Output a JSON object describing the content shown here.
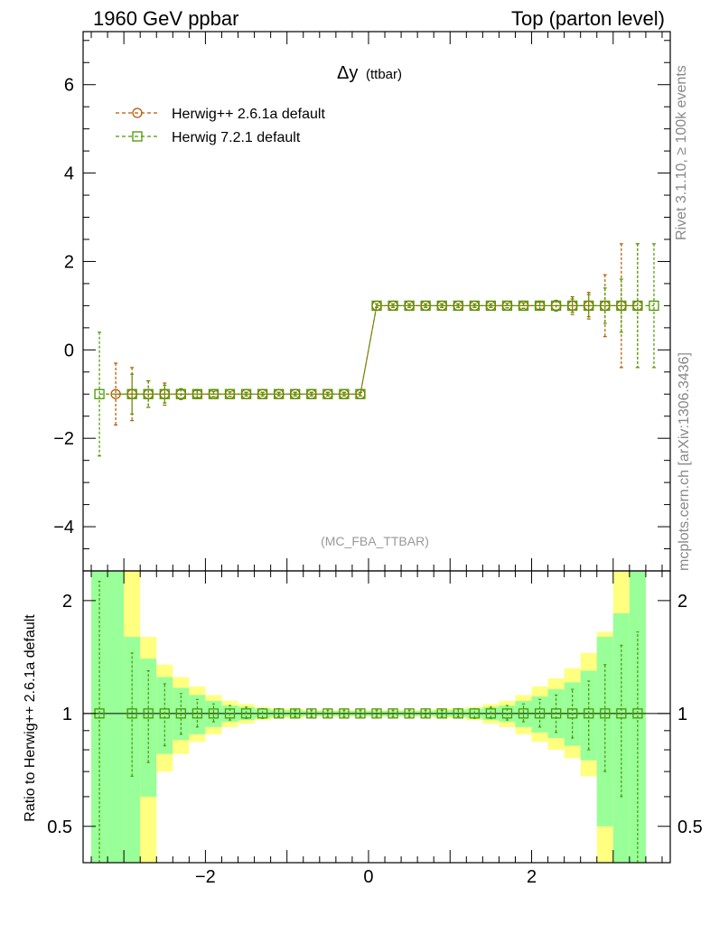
{
  "header": {
    "left": "1960 GeV ppbar",
    "right": "Top (parton level)"
  },
  "side_labels": {
    "rivet": "Rivet 3.1.10, ≥ 100k events",
    "mcplots": "mcplots.cern.ch [arXiv:1306.3436]"
  },
  "chart_data": [
    {
      "type": "line",
      "panel": "main",
      "title_main": "Δy",
      "title_sub": "(ttbar)",
      "watermark": "(MC_FBA_TTBAR)",
      "xlim": [
        -3.5,
        3.7
      ],
      "ylim": [
        -5.0,
        7.2
      ],
      "yticks": [
        -4,
        -2,
        0,
        2,
        4,
        6
      ],
      "ytick_labels": [
        "−4",
        "−2",
        "0",
        "2",
        "4",
        "6"
      ],
      "legend_position": "top-left",
      "x": [
        -3.3,
        -3.1,
        -2.9,
        -2.7,
        -2.5,
        -2.3,
        -2.1,
        -1.9,
        -1.7,
        -1.5,
        -1.3,
        -1.1,
        -0.9,
        -0.7,
        -0.5,
        -0.3,
        -0.1,
        0.1,
        0.3,
        0.5,
        0.7,
        0.9,
        1.1,
        1.3,
        1.5,
        1.7,
        1.9,
        2.1,
        2.3,
        2.5,
        2.7,
        2.9,
        3.1,
        3.3,
        3.5
      ],
      "series": [
        {
          "name": "Herwig++ 2.6.1a default",
          "color": "#b35900",
          "marker": "circle",
          "x": [
            -3.1,
            -2.9,
            -2.7,
            -2.5,
            -2.3,
            -2.1,
            -1.9,
            -1.7,
            -1.5,
            -1.3,
            -1.1,
            -0.9,
            -0.7,
            -0.5,
            -0.3,
            -0.1,
            0.1,
            0.3,
            0.5,
            0.7,
            0.9,
            1.1,
            1.3,
            1.5,
            1.7,
            1.9,
            2.1,
            2.3,
            2.5,
            2.7,
            2.9,
            3.1,
            3.3
          ],
          "y": [
            -1,
            -1,
            -1,
            -1,
            -1,
            -1,
            -1,
            -1,
            -1,
            -1,
            -1,
            -1,
            -1,
            -1,
            -1,
            -1,
            1,
            1,
            1,
            1,
            1,
            1,
            1,
            1,
            1,
            1,
            1,
            1,
            1,
            1,
            1,
            1,
            1
          ],
          "err": [
            0.7,
            0.6,
            0.3,
            0.25,
            0.12,
            0.08,
            0.06,
            0.05,
            0.04,
            0.04,
            0.04,
            0.04,
            0.04,
            0.04,
            0.04,
            0.04,
            0.04,
            0.04,
            0.04,
            0.04,
            0.04,
            0.04,
            0.04,
            0.04,
            0.05,
            0.06,
            0.08,
            0.12,
            0.2,
            0.3,
            0.7,
            1.4,
            1.4
          ]
        },
        {
          "name": "Herwig 7.2.1 default",
          "color": "#4c9900",
          "marker": "square",
          "x": [
            -3.3,
            -2.9,
            -2.7,
            -2.5,
            -2.3,
            -2.1,
            -1.9,
            -1.7,
            -1.5,
            -1.3,
            -1.1,
            -0.9,
            -0.7,
            -0.5,
            -0.3,
            -0.1,
            0.1,
            0.3,
            0.5,
            0.7,
            0.9,
            1.1,
            1.3,
            1.5,
            1.7,
            1.9,
            2.1,
            2.3,
            2.5,
            2.7,
            2.9,
            3.1,
            3.3,
            3.5
          ],
          "y": [
            -1,
            -1,
            -1,
            -1,
            -1,
            -1,
            -1,
            -1,
            -1,
            -1,
            -1,
            -1,
            -1,
            -1,
            -1,
            -1,
            1,
            1,
            1,
            1,
            1,
            1,
            1,
            1,
            1,
            1,
            1,
            1,
            1,
            1,
            1,
            1,
            1,
            1
          ],
          "err": [
            1.4,
            0.45,
            0.3,
            0.2,
            0.12,
            0.08,
            0.06,
            0.05,
            0.04,
            0.04,
            0.04,
            0.04,
            0.04,
            0.04,
            0.04,
            0.04,
            0.04,
            0.04,
            0.04,
            0.04,
            0.04,
            0.04,
            0.04,
            0.04,
            0.05,
            0.06,
            0.08,
            0.12,
            0.15,
            0.25,
            0.4,
            0.6,
            1.4,
            1.4
          ]
        }
      ]
    },
    {
      "type": "line",
      "panel": "ratio",
      "ylabel": "Ratio to Herwig++ 2.6.1a default",
      "xlim": [
        -3.5,
        3.7
      ],
      "ylim": [
        0.4,
        2.4
      ],
      "log_y": true,
      "xticks": [
        -2,
        0,
        2
      ],
      "xtick_labels": [
        "−2",
        "0",
        "2"
      ],
      "yticks": [
        0.5,
        1,
        2
      ],
      "ytick_labels": [
        "0.5",
        "1",
        "2"
      ],
      "bins": [
        [
          -3.4,
          -3.2
        ],
        [
          -3.2,
          -3.0
        ],
        [
          -3.0,
          -2.8
        ],
        [
          -2.8,
          -2.6
        ],
        [
          -2.6,
          -2.4
        ],
        [
          -2.4,
          -2.2
        ],
        [
          -2.2,
          -2.0
        ],
        [
          -2.0,
          -1.8
        ],
        [
          -1.8,
          -1.6
        ],
        [
          -1.6,
          -1.4
        ],
        [
          -1.4,
          -1.2
        ],
        [
          -1.2,
          -1.0
        ],
        [
          -1.0,
          -0.8
        ],
        [
          -0.8,
          -0.6
        ],
        [
          -0.6,
          -0.4
        ],
        [
          -0.4,
          -0.2
        ],
        [
          -0.2,
          0.0
        ],
        [
          0.0,
          0.2
        ],
        [
          0.2,
          0.4
        ],
        [
          0.4,
          0.6
        ],
        [
          0.6,
          0.8
        ],
        [
          0.8,
          1.0
        ],
        [
          1.0,
          1.2
        ],
        [
          1.2,
          1.4
        ],
        [
          1.4,
          1.6
        ],
        [
          1.6,
          1.8
        ],
        [
          1.8,
          2.0
        ],
        [
          2.0,
          2.2
        ],
        [
          2.2,
          2.4
        ],
        [
          2.4,
          2.6
        ],
        [
          2.6,
          2.8
        ],
        [
          2.8,
          3.0
        ],
        [
          3.0,
          3.2
        ],
        [
          3.2,
          3.4
        ]
      ],
      "band_green": [
        [
          0.3,
          2.4
        ],
        [
          0.3,
          2.4
        ],
        [
          0.3,
          1.6
        ],
        [
          0.6,
          1.4
        ],
        [
          0.78,
          1.25
        ],
        [
          0.85,
          1.17
        ],
        [
          0.88,
          1.12
        ],
        [
          0.92,
          1.08
        ],
        [
          0.95,
          1.05
        ],
        [
          0.96,
          1.04
        ],
        [
          0.97,
          1.03
        ],
        [
          0.98,
          1.02
        ],
        [
          0.98,
          1.02
        ],
        [
          0.985,
          1.015
        ],
        [
          0.985,
          1.015
        ],
        [
          0.985,
          1.015
        ],
        [
          0.985,
          1.015
        ],
        [
          0.985,
          1.015
        ],
        [
          0.985,
          1.015
        ],
        [
          0.985,
          1.015
        ],
        [
          0.985,
          1.015
        ],
        [
          0.98,
          1.02
        ],
        [
          0.98,
          1.02
        ],
        [
          0.97,
          1.03
        ],
        [
          0.96,
          1.04
        ],
        [
          0.95,
          1.05
        ],
        [
          0.92,
          1.08
        ],
        [
          0.89,
          1.11
        ],
        [
          0.86,
          1.16
        ],
        [
          0.82,
          1.21
        ],
        [
          0.75,
          1.3
        ],
        [
          0.5,
          1.6
        ],
        [
          0.3,
          1.85
        ],
        [
          0.3,
          2.4
        ]
      ],
      "band_yellow": [
        [
          0.3,
          2.4
        ],
        [
          0.3,
          2.4
        ],
        [
          0.3,
          2.4
        ],
        [
          0.3,
          1.6
        ],
        [
          0.7,
          1.35
        ],
        [
          0.78,
          1.25
        ],
        [
          0.84,
          1.18
        ],
        [
          0.88,
          1.12
        ],
        [
          0.92,
          1.08
        ],
        [
          0.94,
          1.06
        ],
        [
          0.96,
          1.04
        ],
        [
          0.97,
          1.03
        ],
        [
          0.97,
          1.03
        ],
        [
          0.98,
          1.02
        ],
        [
          0.98,
          1.02
        ],
        [
          0.98,
          1.02
        ],
        [
          0.98,
          1.02
        ],
        [
          0.98,
          1.02
        ],
        [
          0.98,
          1.02
        ],
        [
          0.98,
          1.02
        ],
        [
          0.98,
          1.02
        ],
        [
          0.97,
          1.03
        ],
        [
          0.97,
          1.03
        ],
        [
          0.96,
          1.04
        ],
        [
          0.94,
          1.06
        ],
        [
          0.92,
          1.08
        ],
        [
          0.88,
          1.12
        ],
        [
          0.84,
          1.18
        ],
        [
          0.8,
          1.24
        ],
        [
          0.76,
          1.32
        ],
        [
          0.68,
          1.45
        ],
        [
          0.3,
          1.65
        ],
        [
          0.3,
          2.4
        ],
        [
          0.3,
          2.4
        ]
      ],
      "series": [
        {
          "name": "Herwig 7.2.1 default",
          "color": "#4c9900",
          "marker": "square",
          "x": [
            -3.3,
            -2.9,
            -2.7,
            -2.5,
            -2.3,
            -2.1,
            -1.9,
            -1.7,
            -1.5,
            -1.3,
            -1.1,
            -0.9,
            -0.7,
            -0.5,
            -0.3,
            -0.1,
            0.1,
            0.3,
            0.5,
            0.7,
            0.9,
            1.1,
            1.3,
            1.5,
            1.7,
            1.9,
            2.1,
            2.3,
            2.5,
            2.7,
            2.9,
            3.1,
            3.3
          ],
          "y": [
            1,
            1,
            1,
            1,
            1,
            1,
            1,
            1,
            1,
            1,
            1,
            1,
            1,
            1,
            1,
            1,
            1,
            1,
            1,
            1,
            1,
            1,
            1,
            1,
            1,
            1,
            1,
            1,
            1,
            1,
            1,
            1,
            1
          ],
          "lo": [
            0.3,
            0.68,
            0.74,
            0.82,
            0.88,
            0.92,
            0.95,
            0.96,
            0.97,
            0.97,
            0.98,
            0.98,
            0.98,
            0.98,
            0.98,
            0.98,
            0.98,
            0.98,
            0.98,
            0.98,
            0.98,
            0.98,
            0.97,
            0.97,
            0.96,
            0.95,
            0.92,
            0.89,
            0.86,
            0.8,
            0.7,
            0.6,
            0.38
          ],
          "hi": [
            2.25,
            1.45,
            1.3,
            1.2,
            1.13,
            1.09,
            1.06,
            1.05,
            1.04,
            1.03,
            1.03,
            1.02,
            1.02,
            1.02,
            1.02,
            1.02,
            1.02,
            1.02,
            1.02,
            1.02,
            1.02,
            1.03,
            1.03,
            1.04,
            1.05,
            1.06,
            1.09,
            1.12,
            1.16,
            1.22,
            1.35,
            1.52,
            1.65
          ]
        }
      ]
    }
  ]
}
